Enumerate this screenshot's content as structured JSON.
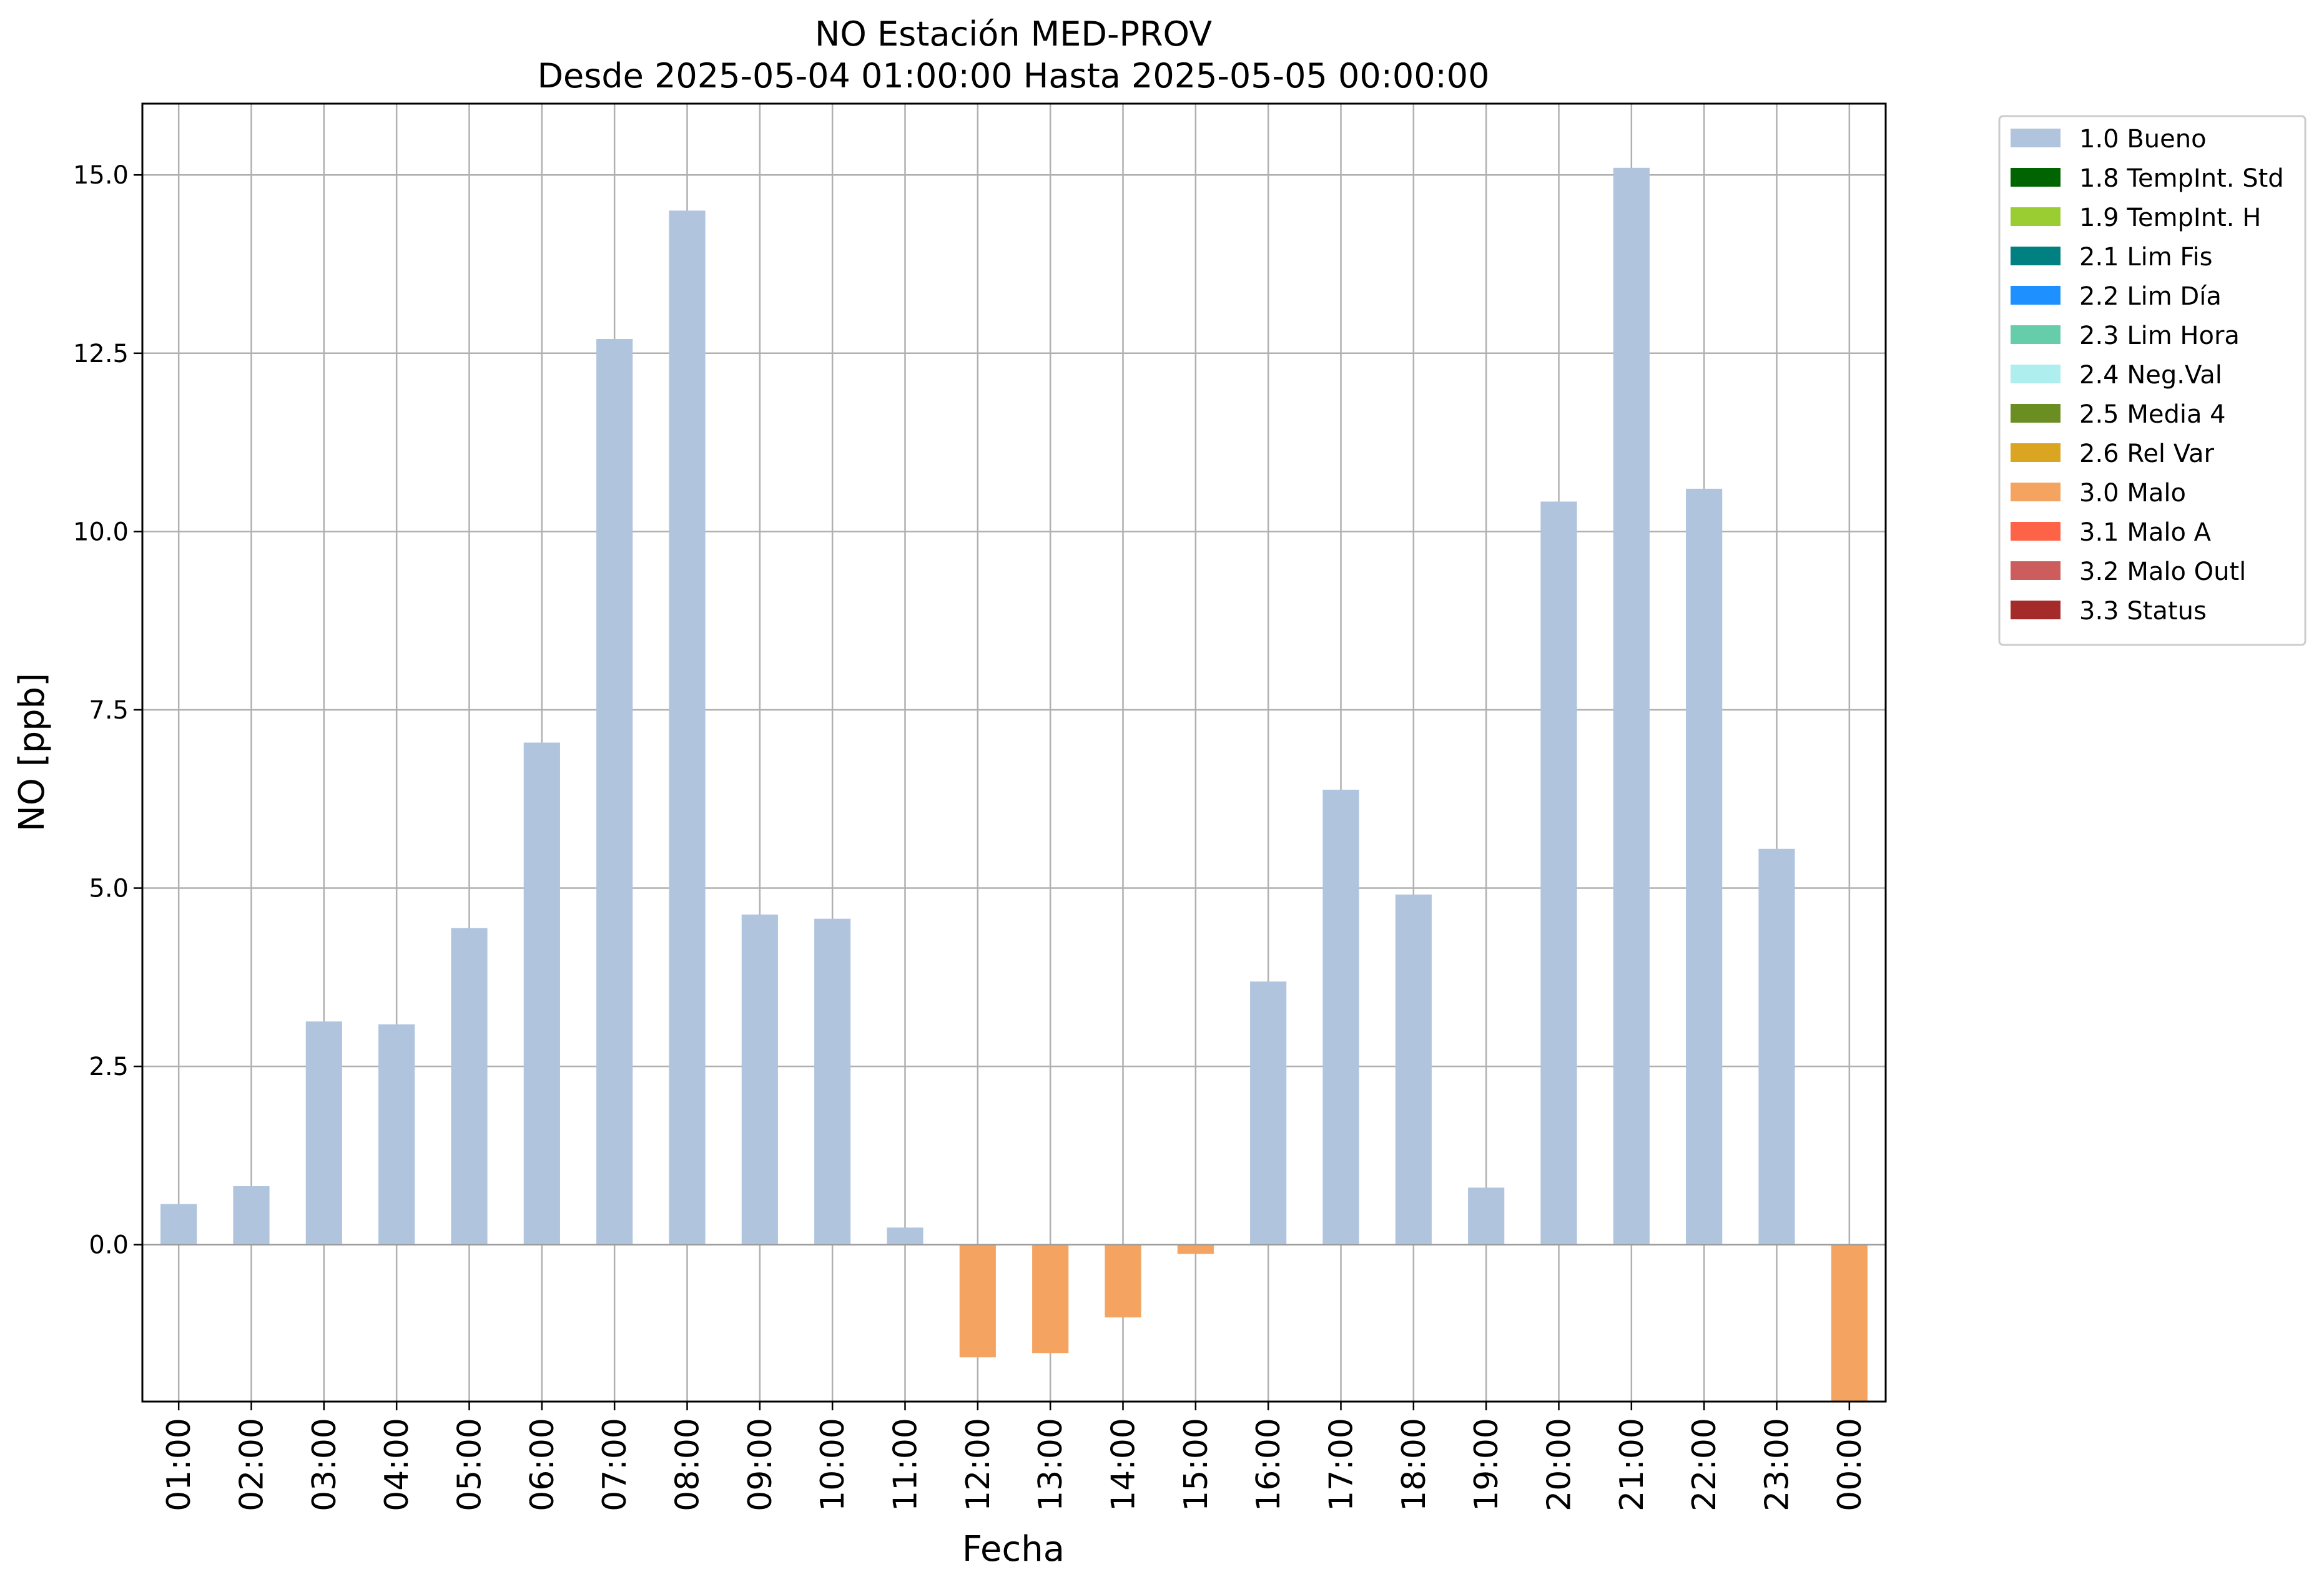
{
  "chart_data": {
    "type": "bar",
    "title": "NO Estación MED-PROV",
    "subtitle": "Desde 2025-05-04 01:00:00 Hasta 2025-05-05 00:00:00",
    "xlabel": "Fecha",
    "ylabel": "NO [ppb]",
    "ylim": [
      -2.2,
      16.0
    ],
    "yticks": [
      "0.0",
      "2.5",
      "5.0",
      "7.5",
      "10.0",
      "12.5",
      "15.0"
    ],
    "grid": true,
    "legend_position": "outside-top-right",
    "categories": [
      "01:00",
      "02:00",
      "03:00",
      "04:00",
      "05:00",
      "06:00",
      "07:00",
      "08:00",
      "09:00",
      "10:00",
      "11:00",
      "12:00",
      "13:00",
      "14:00",
      "15:00",
      "16:00",
      "17:00",
      "18:00",
      "19:00",
      "20:00",
      "21:00",
      "22:00",
      "23:00",
      "00:00"
    ],
    "values": [
      0.57,
      0.82,
      3.13,
      3.09,
      4.44,
      7.04,
      12.7,
      14.5,
      4.63,
      4.57,
      0.24,
      -1.58,
      -1.52,
      -1.02,
      -0.13,
      3.69,
      6.38,
      4.91,
      0.8,
      10.42,
      15.1,
      10.6,
      5.55,
      -2.2
    ],
    "flags": [
      "1.0 Bueno",
      "1.0 Bueno",
      "1.0 Bueno",
      "1.0 Bueno",
      "1.0 Bueno",
      "1.0 Bueno",
      "1.0 Bueno",
      "1.0 Bueno",
      "1.0 Bueno",
      "1.0 Bueno",
      "1.0 Bueno",
      "3.0 Malo",
      "3.0 Malo",
      "3.0 Malo",
      "3.0 Malo",
      "1.0 Bueno",
      "1.0 Bueno",
      "1.0 Bueno",
      "1.0 Bueno",
      "1.0 Bueno",
      "1.0 Bueno",
      "1.0 Bueno",
      "1.0 Bueno",
      "3.0 Malo"
    ],
    "legend": [
      {
        "label": "1.0 Bueno",
        "color": "#b0c4de"
      },
      {
        "label": "1.8 TempInt. Std",
        "color": "#006400"
      },
      {
        "label": "1.9 TempInt. H",
        "color": "#9acd32"
      },
      {
        "label": "2.1 Lim Fis",
        "color": "#008080"
      },
      {
        "label": "2.2 Lim Día",
        "color": "#1e90ff"
      },
      {
        "label": "2.3 Lim Hora",
        "color": "#66cdaa"
      },
      {
        "label": "2.4 Neg.Val",
        "color": "#afeeee"
      },
      {
        "label": "2.5 Media 4",
        "color": "#6b8e23"
      },
      {
        "label": "2.6 Rel Var",
        "color": "#daa520"
      },
      {
        "label": "3.0 Malo",
        "color": "#f4a460"
      },
      {
        "label": "3.1 Malo A",
        "color": "#ff6347"
      },
      {
        "label": "3.2 Malo Outl",
        "color": "#cd5c5c"
      },
      {
        "label": "3.3 Status",
        "color": "#a52a2a"
      }
    ]
  }
}
